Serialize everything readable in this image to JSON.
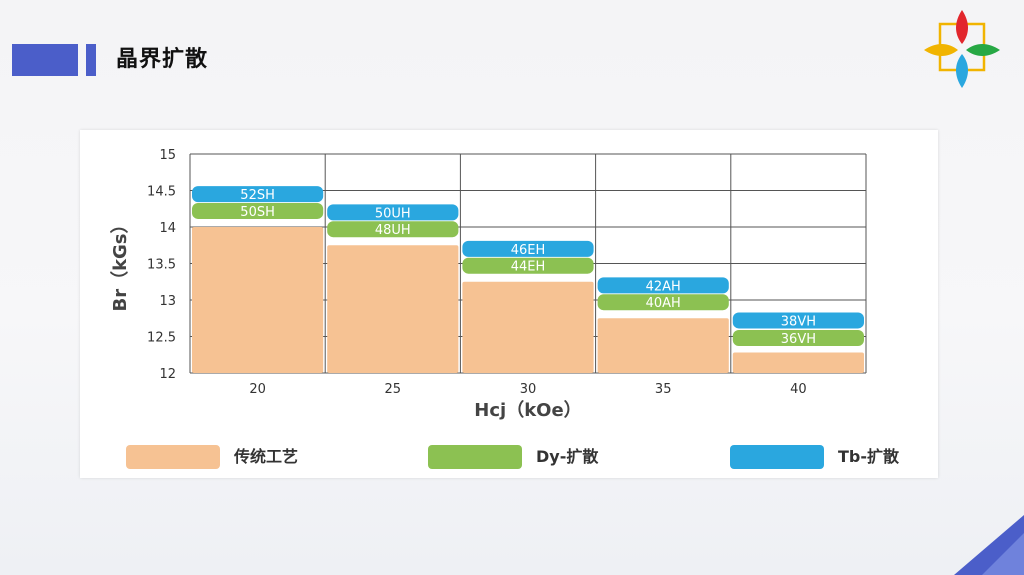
{
  "slide": {
    "title": "晶界扩散"
  },
  "colors": {
    "traditional": "#f6c293",
    "dy": "#8cc152",
    "tb": "#2aa7df",
    "accent": "#4b5ec9"
  },
  "icons": {
    "logo": "four-petal-logo-icon"
  },
  "chart_data": {
    "type": "bar",
    "xlabel": "Hcj（kOe）",
    "ylabel": "Br（kGs）",
    "ylim": [
      12,
      15
    ],
    "yticks": [
      "15",
      "14.5",
      "14",
      "13.5",
      "13",
      "12.5",
      "12"
    ],
    "categories": [
      "20",
      "25",
      "30",
      "35",
      "40"
    ],
    "series": [
      {
        "name": "传统工艺",
        "values": [
          14.0,
          13.75,
          13.25,
          12.75,
          12.28
        ]
      },
      {
        "name": "Dy-扩散",
        "values": [
          14.22,
          13.97,
          13.47,
          12.97,
          12.48
        ],
        "labels": [
          "50SH",
          "48UH",
          "44EH",
          "40AH",
          "36VH"
        ]
      },
      {
        "name": "Tb-扩散",
        "values": [
          14.45,
          14.2,
          13.7,
          13.2,
          12.72
        ],
        "labels": [
          "52SH",
          "50UH",
          "46EH",
          "42AH",
          "38VH"
        ]
      }
    ],
    "legend_position": "bottom",
    "grid": true
  }
}
